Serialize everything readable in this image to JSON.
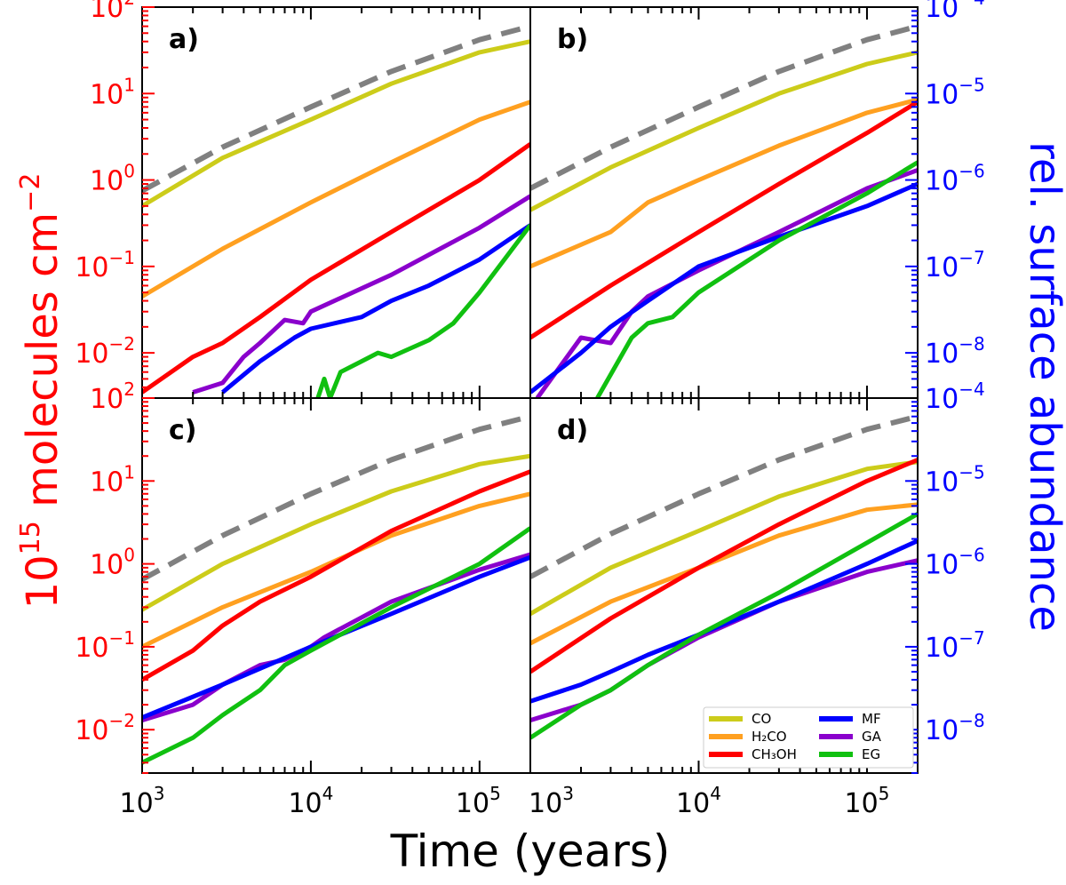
{
  "chart_data": {
    "type": "line",
    "xlabel": "Time (years)",
    "ylabel_left": "molecules cm",
    "ylabel_left_base": "10",
    "ylabel_left_exp": "15",
    "ylabel_left_unit_exp": "−2",
    "ylabel_right": "rel. surface abundance",
    "x_scale": "log",
    "xlim": [
      1000,
      200000
    ],
    "ylim_left": [
      0.003,
      100
    ],
    "ylim_right_ratio": 1e-06,
    "x_ticks": [
      {
        "value": 1000,
        "mantissa": "10",
        "exp": "3"
      },
      {
        "value": 10000,
        "mantissa": "10",
        "exp": "4"
      },
      {
        "value": 100000,
        "mantissa": "10",
        "exp": "5"
      }
    ],
    "y_ticks_left": [
      {
        "value": 100,
        "mantissa": "10",
        "exp": "2"
      },
      {
        "value": 10,
        "mantissa": "10",
        "exp": "1"
      },
      {
        "value": 1,
        "mantissa": "10",
        "exp": "0"
      },
      {
        "value": 0.1,
        "mantissa": "10",
        "exp": "−1"
      },
      {
        "value": 0.01,
        "mantissa": "10",
        "exp": "−2"
      }
    ],
    "y_ticks_right": [
      {
        "value": 0.0001,
        "mantissa": "10",
        "exp": "−4"
      },
      {
        "value": 1e-05,
        "mantissa": "10",
        "exp": "−5"
      },
      {
        "value": 1e-06,
        "mantissa": "10",
        "exp": "−6"
      },
      {
        "value": 1e-07,
        "mantissa": "10",
        "exp": "−7"
      },
      {
        "value": 1e-08,
        "mantissa": "10",
        "exp": "−8"
      }
    ],
    "colors": {
      "CO": "#cccc1a",
      "H2CO": "#ffa020",
      "CH3OH": "#ff0000",
      "MF": "#0000ff",
      "GA": "#8a00cc",
      "EG": "#10c010",
      "total": "#808080",
      "left_axis": "#ff0000",
      "right_axis": "#0000ff"
    },
    "legend": {
      "placement": "lower-right of panel d",
      "entries": [
        {
          "key": "CO",
          "label": "CO"
        },
        {
          "key": "H2CO",
          "label": "H₂CO"
        },
        {
          "key": "CH3OH",
          "label": "CH₃OH"
        },
        {
          "key": "MF",
          "label": "MF"
        },
        {
          "key": "GA",
          "label": "GA"
        },
        {
          "key": "EG",
          "label": "EG"
        }
      ]
    },
    "panels": [
      {
        "label": "a)",
        "series": [
          {
            "key": "total",
            "dashed": true,
            "x": [
              1000,
              3000,
              10000,
              30000,
              100000,
              200000
            ],
            "y": [
              0.75,
              2.4,
              7,
              18,
              42,
              60
            ]
          },
          {
            "key": "CO",
            "x": [
              1000,
              3000,
              10000,
              30000,
              100000,
              200000
            ],
            "y": [
              0.5,
              1.8,
              5,
              13,
              30,
              40
            ]
          },
          {
            "key": "H2CO",
            "x": [
              1000,
              3000,
              10000,
              30000,
              100000,
              200000
            ],
            "y": [
              0.045,
              0.16,
              0.55,
              1.6,
              5,
              8
            ]
          },
          {
            "key": "CH3OH",
            "x": [
              1000,
              2000,
              3000,
              5000,
              10000,
              30000,
              100000,
              200000
            ],
            "y": [
              0.0035,
              0.009,
              0.013,
              0.026,
              0.07,
              0.25,
              1.0,
              2.6
            ]
          },
          {
            "key": "GA",
            "x": [
              2000,
              3000,
              4000,
              5000,
              7000,
              9000,
              10000,
              30000,
              100000,
              200000
            ],
            "y": [
              0.0035,
              0.0045,
              0.009,
              0.013,
              0.024,
              0.022,
              0.03,
              0.08,
              0.28,
              0.65
            ]
          },
          {
            "key": "MF",
            "x": [
              3000,
              5000,
              8000,
              10000,
              20000,
              30000,
              50000,
              100000,
              200000
            ],
            "y": [
              0.0035,
              0.008,
              0.015,
              0.019,
              0.026,
              0.04,
              0.06,
              0.12,
              0.3
            ]
          },
          {
            "key": "EG",
            "x": [
              11000,
              12000,
              13000,
              15000,
              20000,
              25000,
              30000,
              50000,
              70000,
              100000,
              200000
            ],
            "y": [
              0.003,
              0.005,
              0.003,
              0.006,
              0.008,
              0.01,
              0.009,
              0.014,
              0.022,
              0.05,
              0.3
            ]
          }
        ]
      },
      {
        "label": "b)",
        "series": [
          {
            "key": "total",
            "dashed": true,
            "x": [
              1000,
              3000,
              10000,
              30000,
              100000,
              200000
            ],
            "y": [
              0.8,
              2.4,
              7,
              18,
              42,
              60
            ]
          },
          {
            "key": "CO",
            "x": [
              1000,
              3000,
              10000,
              30000,
              100000,
              200000
            ],
            "y": [
              0.45,
              1.4,
              4,
              10,
              22,
              30
            ]
          },
          {
            "key": "H2CO",
            "x": [
              1000,
              3000,
              5000,
              10000,
              30000,
              100000,
              200000
            ],
            "y": [
              0.1,
              0.25,
              0.55,
              1.0,
              2.5,
              6,
              8.5
            ]
          },
          {
            "key": "CH3OH",
            "x": [
              1000,
              3000,
              10000,
              30000,
              100000,
              200000
            ],
            "y": [
              0.015,
              0.06,
              0.25,
              0.9,
              3.5,
              8
            ]
          },
          {
            "key": "GA",
            "x": [
              1100,
              2000,
              3000,
              4000,
              5000,
              10000,
              30000,
              100000,
              200000
            ],
            "y": [
              0.003,
              0.015,
              0.013,
              0.03,
              0.045,
              0.09,
              0.25,
              0.8,
              1.3
            ]
          },
          {
            "key": "MF",
            "x": [
              1000,
              2000,
              3000,
              5000,
              10000,
              30000,
              100000,
              200000
            ],
            "y": [
              0.0035,
              0.01,
              0.02,
              0.04,
              0.1,
              0.22,
              0.5,
              0.9
            ]
          },
          {
            "key": "EG",
            "x": [
              2500,
              4000,
              5000,
              7000,
              10000,
              30000,
              100000,
              200000
            ],
            "y": [
              0.003,
              0.015,
              0.022,
              0.026,
              0.05,
              0.2,
              0.7,
              1.6
            ]
          }
        ]
      },
      {
        "label": "c)",
        "series": [
          {
            "key": "total",
            "dashed": true,
            "x": [
              1000,
              3000,
              10000,
              30000,
              100000,
              200000
            ],
            "y": [
              0.65,
              2.2,
              7,
              18,
              42,
              60
            ]
          },
          {
            "key": "CO",
            "x": [
              1000,
              3000,
              10000,
              30000,
              100000,
              200000
            ],
            "y": [
              0.28,
              1.0,
              3,
              7.5,
              16,
              20
            ]
          },
          {
            "key": "H2CO",
            "x": [
              1000,
              3000,
              10000,
              30000,
              100000,
              200000
            ],
            "y": [
              0.1,
              0.3,
              0.8,
              2.2,
              5,
              7
            ]
          },
          {
            "key": "CH3OH",
            "x": [
              1000,
              2000,
              3000,
              5000,
              10000,
              30000,
              100000,
              200000
            ],
            "y": [
              0.04,
              0.09,
              0.18,
              0.35,
              0.7,
              2.5,
              7.5,
              13
            ]
          },
          {
            "key": "GA",
            "x": [
              1000,
              2000,
              3000,
              5000,
              7000,
              10000,
              12000,
              30000,
              100000,
              200000
            ],
            "y": [
              0.013,
              0.02,
              0.035,
              0.06,
              0.07,
              0.1,
              0.13,
              0.35,
              0.85,
              1.3
            ]
          },
          {
            "key": "MF",
            "x": [
              1000,
              3000,
              10000,
              30000,
              100000,
              200000
            ],
            "y": [
              0.014,
              0.035,
              0.1,
              0.25,
              0.7,
              1.2
            ]
          },
          {
            "key": "EG",
            "x": [
              1000,
              2000,
              3000,
              5000,
              7000,
              10000,
              30000,
              100000,
              200000
            ],
            "y": [
              0.004,
              0.008,
              0.015,
              0.03,
              0.06,
              0.09,
              0.3,
              1.0,
              2.7
            ]
          }
        ]
      },
      {
        "label": "d)",
        "series": [
          {
            "key": "total",
            "dashed": true,
            "x": [
              1000,
              3000,
              10000,
              30000,
              100000,
              200000
            ],
            "y": [
              0.7,
              2.3,
              7,
              18,
              42,
              60
            ]
          },
          {
            "key": "CO",
            "x": [
              1000,
              3000,
              10000,
              30000,
              100000,
              200000
            ],
            "y": [
              0.25,
              0.9,
              2.5,
              6.5,
              14,
              17
            ]
          },
          {
            "key": "H2CO",
            "x": [
              1000,
              3000,
              10000,
              30000,
              100000,
              200000
            ],
            "y": [
              0.11,
              0.35,
              0.9,
              2.2,
              4.5,
              5.2
            ]
          },
          {
            "key": "CH3OH",
            "x": [
              1000,
              3000,
              10000,
              30000,
              100000,
              200000
            ],
            "y": [
              0.05,
              0.22,
              0.9,
              3.0,
              10,
              18
            ]
          },
          {
            "key": "GA",
            "x": [
              1000,
              2000,
              3000,
              5000,
              10000,
              30000,
              100000,
              200000
            ],
            "y": [
              0.013,
              0.02,
              0.03,
              0.06,
              0.13,
              0.35,
              0.8,
              1.1
            ]
          },
          {
            "key": "MF",
            "x": [
              1000,
              2000,
              3000,
              5000,
              10000,
              30000,
              100000,
              200000
            ],
            "y": [
              0.022,
              0.035,
              0.05,
              0.08,
              0.14,
              0.35,
              1.0,
              1.9
            ]
          },
          {
            "key": "EG",
            "x": [
              1000,
              2000,
              3000,
              5000,
              10000,
              30000,
              100000,
              200000
            ],
            "y": [
              0.008,
              0.02,
              0.03,
              0.06,
              0.14,
              0.45,
              1.8,
              4
            ]
          }
        ]
      }
    ]
  }
}
